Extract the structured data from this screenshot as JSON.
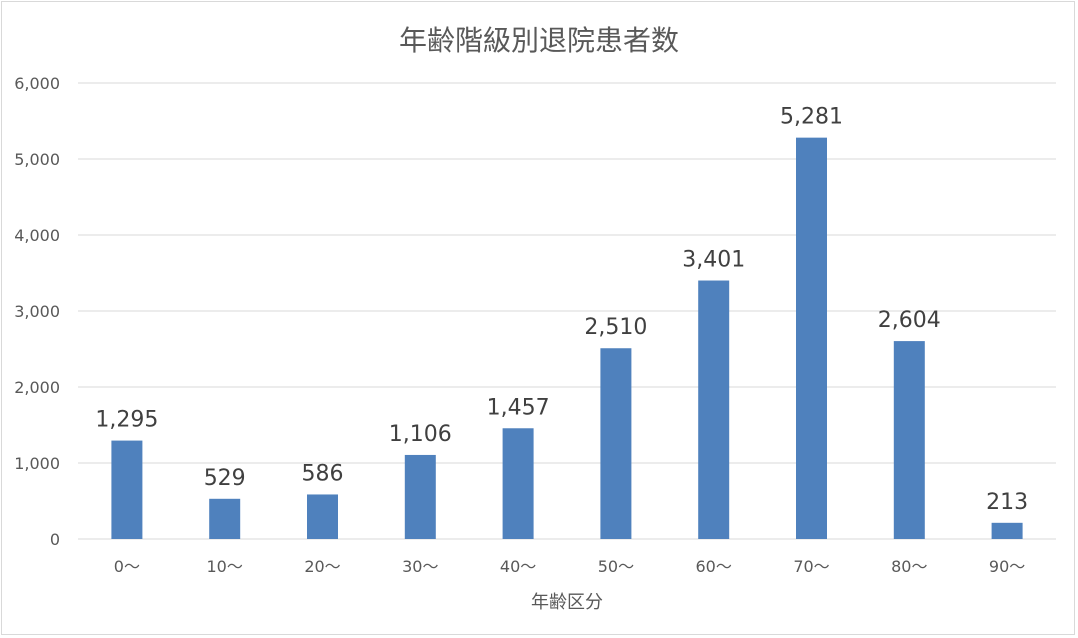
{
  "chart_data": {
    "type": "bar",
    "title": "年齢階級別退院患者数",
    "xlabel": "年齢区分",
    "ylabel": "",
    "categories": [
      "0〜",
      "10〜",
      "20〜",
      "30〜",
      "40〜",
      "50〜",
      "60〜",
      "70〜",
      "80〜",
      "90〜"
    ],
    "values": [
      1295,
      529,
      586,
      1106,
      1457,
      2510,
      3401,
      5281,
      2604,
      213
    ],
    "value_labels": [
      "1,295",
      "529",
      "586",
      "1,106",
      "1,457",
      "2,510",
      "3,401",
      "5,281",
      "2,604",
      "213"
    ],
    "ylim": [
      0,
      6000
    ],
    "yticks": [
      0,
      1000,
      2000,
      3000,
      4000,
      5000,
      6000
    ],
    "ytick_labels": [
      "0",
      "1,000",
      "2,000",
      "3,000",
      "4,000",
      "5,000",
      "6,000"
    ],
    "grid": true,
    "legend": "none",
    "bar_color": "#4f81bd",
    "grid_color": "#d9d9d9"
  }
}
